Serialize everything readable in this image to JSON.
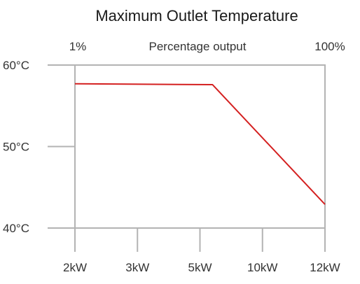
{
  "chart_data": {
    "type": "line",
    "title": "Maximum Outlet Temperature",
    "top_axis": {
      "label": "Percentage output",
      "left_label": "1%",
      "right_label": "100%"
    },
    "x_tick_labels": [
      "2kW",
      "3kW",
      "5kW",
      "10kW",
      "12kW"
    ],
    "x_positions": [
      0,
      1,
      2,
      3,
      4
    ],
    "y_tick_labels": [
      "60°C",
      "50°C",
      "40°C"
    ],
    "y_ticks": [
      60,
      50,
      40
    ],
    "ylim": [
      40,
      60
    ],
    "grid": false,
    "series": [
      {
        "color": "#d42020",
        "points": [
          {
            "x": 0,
            "y": 57.7
          },
          {
            "x": 2.2,
            "y": 57.6
          },
          {
            "x": 4,
            "y": 42.9
          }
        ]
      }
    ]
  }
}
